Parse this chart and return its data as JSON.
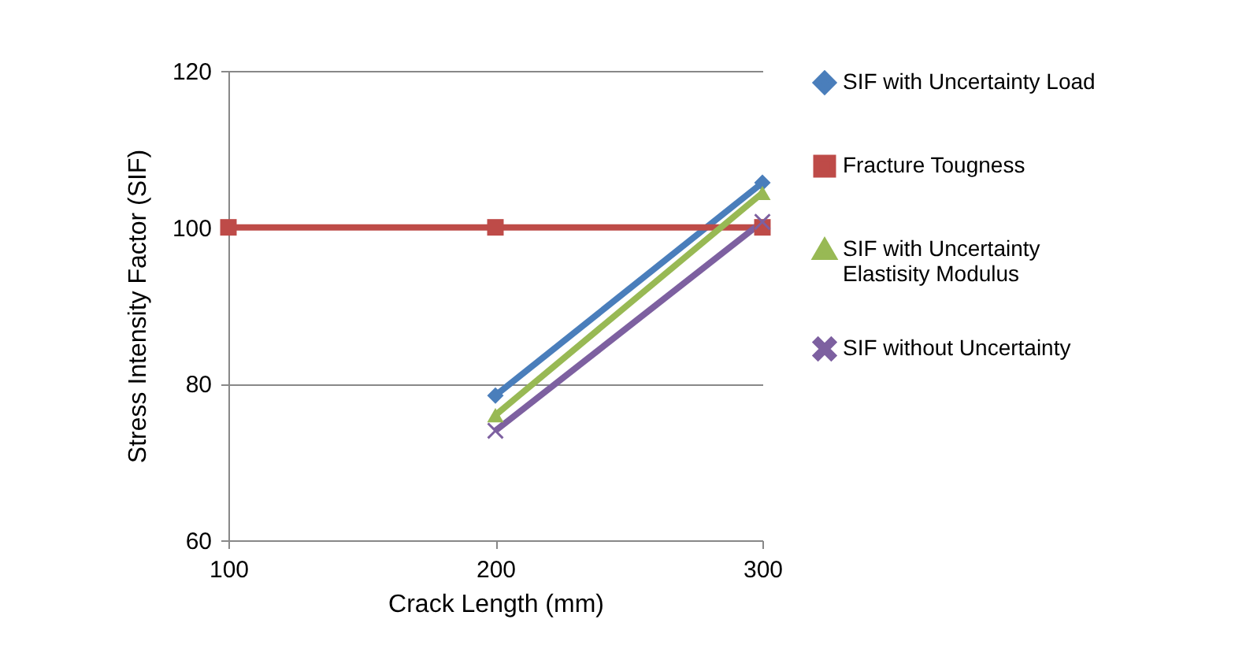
{
  "chart_data": {
    "type": "line",
    "xlabel": "Crack Length (mm)",
    "ylabel": "Stress Intensity Factor (SIF)",
    "xlim": [
      100,
      300
    ],
    "xticks": [
      100,
      200,
      300
    ],
    "ylim": [
      60,
      120
    ],
    "yticks": [
      60,
      80,
      100,
      120
    ],
    "grid": "y",
    "legend": "right",
    "series": [
      {
        "name": "SIF with Uncertainty Load",
        "color": "#4a7ebb",
        "marker": "diamond",
        "x": [
          200,
          300
        ],
        "values": [
          78.5,
          105.7
        ]
      },
      {
        "name": "Fracture Tougness",
        "color": "#be4b48",
        "marker": "square",
        "x": [
          100,
          200,
          300
        ],
        "values": [
          100,
          100,
          100
        ]
      },
      {
        "name": "SIF with Uncertainty Elastisity Modulus",
        "color": "#98b954",
        "marker": "triangle",
        "x": [
          200,
          300
        ],
        "values": [
          76,
          104.4
        ]
      },
      {
        "name": "SIF without Uncertainty",
        "color": "#7d60a0",
        "marker": "cross",
        "x": [
          200,
          300
        ],
        "values": [
          74,
          100.7
        ]
      }
    ]
  }
}
